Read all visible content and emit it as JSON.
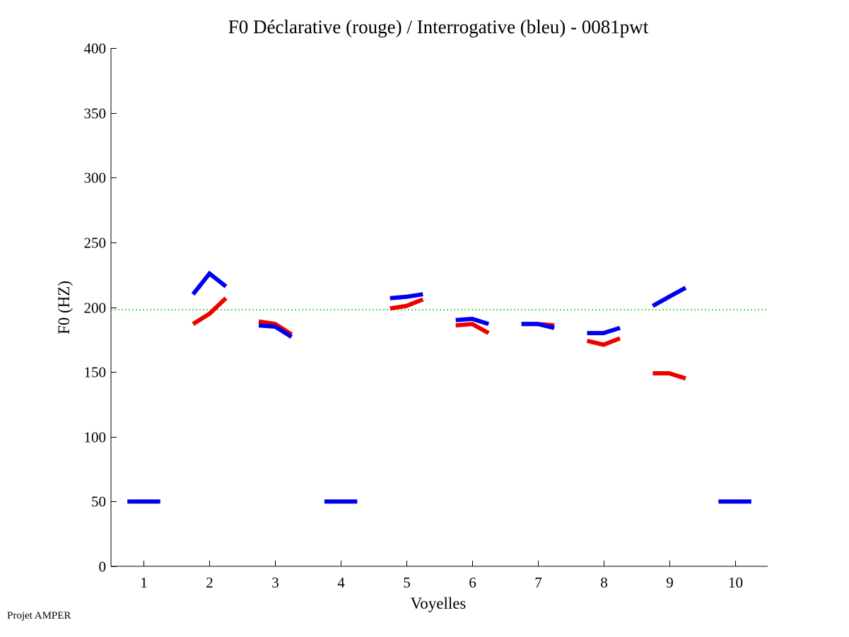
{
  "footer": {
    "text": "Projet AMPER"
  },
  "chart_data": {
    "type": "line",
    "title": "F0 Déclarative (rouge) / Interrogative (bleu) - 0081pwt",
    "xlabel": "Voyelles",
    "ylabel": "F0 (HZ)",
    "xlim": [
      0.5,
      10.5
    ],
    "ylim": [
      0,
      400
    ],
    "xticks": [
      1,
      2,
      3,
      4,
      5,
      6,
      7,
      8,
      9,
      10
    ],
    "yticks": [
      0,
      50,
      100,
      150,
      200,
      250,
      300,
      350,
      400
    ],
    "reference_line": {
      "y": 198,
      "color": "#00cc00",
      "style": "dotted"
    },
    "series": [
      {
        "name": "Déclarative (rouge)",
        "color": "#ee0000",
        "segments": [
          {
            "vowel": 2,
            "x": [
              1.75,
              2.0,
              2.25
            ],
            "y": [
              187,
              195,
              207
            ]
          },
          {
            "vowel": 3,
            "x": [
              2.75,
              3.0,
              3.25
            ],
            "y": [
              189,
              187,
              179
            ]
          },
          {
            "vowel": 5,
            "x": [
              4.75,
              5.0,
              5.25
            ],
            "y": [
              199,
              201,
              206
            ]
          },
          {
            "vowel": 6,
            "x": [
              5.75,
              6.0,
              6.25
            ],
            "y": [
              186,
              187,
              180
            ]
          },
          {
            "vowel": 7,
            "x": [
              6.75,
              7.0,
              7.25
            ],
            "y": [
              187,
              187,
              186
            ]
          },
          {
            "vowel": 8,
            "x": [
              7.75,
              8.0,
              8.25
            ],
            "y": [
              174,
              171,
              176
            ]
          },
          {
            "vowel": 9,
            "x": [
              8.75,
              9.0,
              9.25
            ],
            "y": [
              149,
              149,
              145
            ]
          }
        ]
      },
      {
        "name": "Interrogative (bleu)",
        "color": "#0000ee",
        "segments": [
          {
            "vowel": 1,
            "x": [
              0.75,
              1.0,
              1.25
            ],
            "y": [
              50,
              50,
              50
            ]
          },
          {
            "vowel": 2,
            "x": [
              1.75,
              2.0,
              2.25
            ],
            "y": [
              210,
              226,
              216
            ]
          },
          {
            "vowel": 3,
            "x": [
              2.75,
              3.0,
              3.25
            ],
            "y": [
              186,
              185,
              177
            ]
          },
          {
            "vowel": 4,
            "x": [
              3.75,
              4.0,
              4.25
            ],
            "y": [
              50,
              50,
              50
            ]
          },
          {
            "vowel": 5,
            "x": [
              4.75,
              5.0,
              5.25
            ],
            "y": [
              207,
              208,
              210
            ]
          },
          {
            "vowel": 6,
            "x": [
              5.75,
              6.0,
              6.25
            ],
            "y": [
              190,
              191,
              187
            ]
          },
          {
            "vowel": 7,
            "x": [
              6.75,
              7.0,
              7.25
            ],
            "y": [
              187,
              187,
              184
            ]
          },
          {
            "vowel": 8,
            "x": [
              7.75,
              8.0,
              8.25
            ],
            "y": [
              180,
              180,
              184
            ]
          },
          {
            "vowel": 9,
            "x": [
              8.75,
              9.0,
              9.25
            ],
            "y": [
              201,
              208,
              215
            ]
          },
          {
            "vowel": 10,
            "x": [
              9.75,
              10.0,
              10.25
            ],
            "y": [
              50,
              50,
              50
            ]
          }
        ]
      }
    ]
  }
}
